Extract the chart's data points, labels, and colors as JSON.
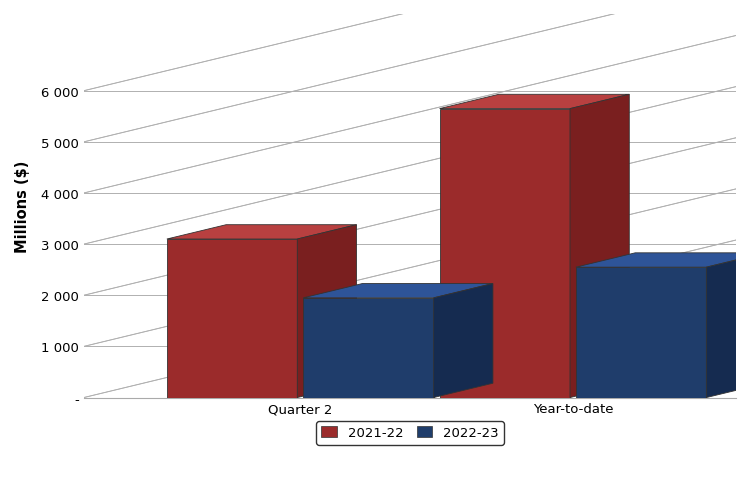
{
  "categories": [
    "Quarter 2",
    "Year-to-date"
  ],
  "series": {
    "2021-22": [
      3100,
      5650
    ],
    "2022-23": [
      1950,
      2550
    ]
  },
  "colors": {
    "2021-22": {
      "front": "#9B2B2B",
      "top": "#B84040",
      "side": "#7A1F1F"
    },
    "2022-23": {
      "front": "#1F3D6B",
      "top": "#2E5498",
      "side": "#152B50"
    }
  },
  "ylabel": "Millions ($)",
  "ylim": [
    0,
    7000
  ],
  "yticks": [
    0,
    1000,
    2000,
    3000,
    4000,
    5000,
    6000
  ],
  "ytick_labels": [
    "-",
    "1 000",
    "2 000",
    "3 000",
    "4 000",
    "5 000",
    "6 000"
  ],
  "background_color": "#ffffff",
  "grid_color": "#b0b0b0"
}
